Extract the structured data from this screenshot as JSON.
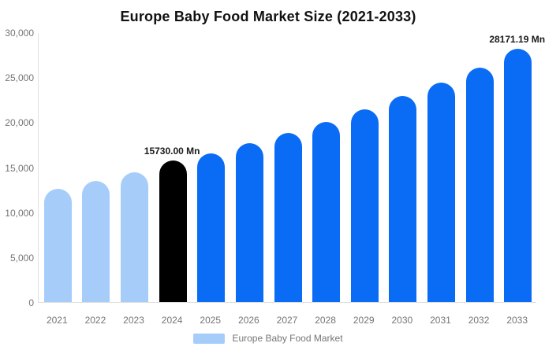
{
  "chart_data": {
    "type": "bar",
    "title": "Europe Baby Food Market Size (2021-2033)",
    "unit": "Mn",
    "categories": [
      "2021",
      "2022",
      "2023",
      "2024",
      "2025",
      "2026",
      "2027",
      "2028",
      "2029",
      "2030",
      "2031",
      "2032",
      "2033"
    ],
    "values": [
      12600,
      13500,
      14450,
      15730,
      16530,
      17640,
      18800,
      20060,
      21430,
      22900,
      24400,
      26050,
      28171.19
    ],
    "ylim": [
      0,
      30000
    ],
    "y_ticks": [
      "30,000",
      "25,000",
      "20,000",
      "15,000",
      "10,000",
      "5,000",
      "0"
    ],
    "grid": "off",
    "legend_position": "bottom-center",
    "bar_colors": [
      "#A6CDFA",
      "#A6CDFA",
      "#A6CDFA",
      "#000000",
      "#0A6CF5",
      "#0A6CF5",
      "#0A6CF5",
      "#0A6CF5",
      "#0A6CF5",
      "#0A6CF5",
      "#0A6CF5",
      "#0A6CF5",
      "#0A6CF5"
    ],
    "annotations": [
      {
        "category": "2024",
        "text": "15730.00 Mn"
      },
      {
        "category": "2033",
        "text": "28171.19 Mn"
      }
    ],
    "legend": [
      {
        "label": "Europe Baby Food Market",
        "color": "#A6CDFA"
      }
    ],
    "theme": {
      "background": "#ffffff",
      "axis_line": "#e0e0e0",
      "tick_text": "#757575",
      "title_text": "#111111",
      "annotation_text": "#1a1a1a",
      "historical_color": "#A6CDFA",
      "base_year_color": "#000000",
      "forecast_color": "#0A6CF5"
    }
  }
}
